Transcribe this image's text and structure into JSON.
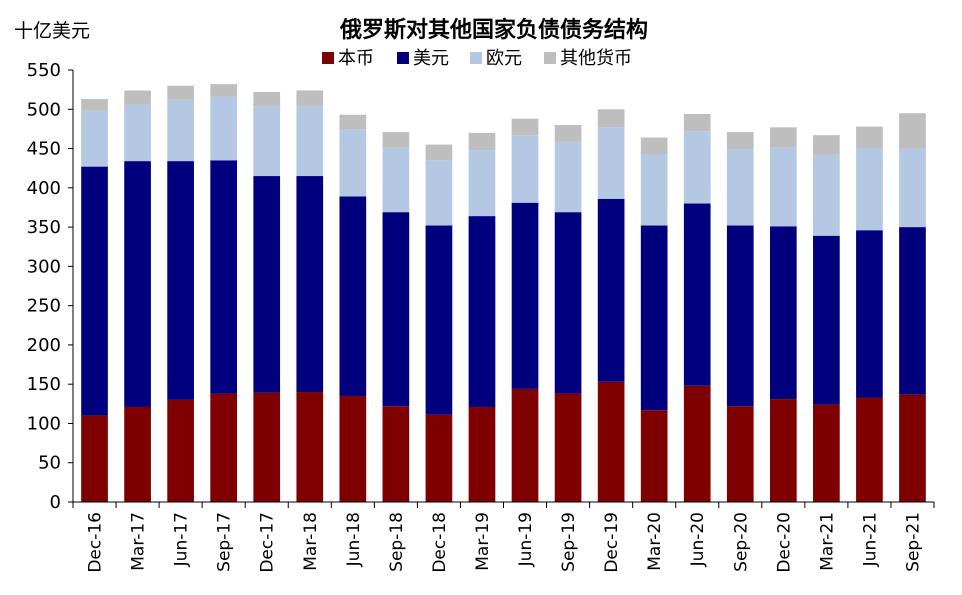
{
  "chart_data": {
    "type": "bar",
    "stacked": true,
    "title": "俄罗斯对其他国家负债债务结构",
    "unit_label": "十亿美元",
    "ylim": [
      0,
      550
    ],
    "yticks": [
      "0",
      "50",
      "100",
      "150",
      "200",
      "250",
      "300",
      "350",
      "400",
      "450",
      "500",
      "550"
    ],
    "categories": [
      "Dec-16",
      "Mar-17",
      "Jun-17",
      "Sep-17",
      "Dec-17",
      "Mar-18",
      "Jun-18",
      "Sep-18",
      "Dec-18",
      "Mar-19",
      "Jun-19",
      "Sep-19",
      "Dec-19",
      "Mar-20",
      "Jun-20",
      "Sep-20",
      "Dec-20",
      "Mar-21",
      "Jun-21",
      "Sep-21"
    ],
    "legend_position": "top",
    "grid": false,
    "series": [
      {
        "name": "本币",
        "color": "#7f0000",
        "values": [
          110,
          121,
          130,
          138,
          139,
          140,
          135,
          122,
          111,
          121,
          144,
          138,
          153,
          117,
          148,
          122,
          131,
          124,
          133,
          137
        ]
      },
      {
        "name": "美元",
        "color": "#00007f",
        "values": [
          317,
          313,
          304,
          297,
          276,
          275,
          254,
          247,
          241,
          243,
          237,
          231,
          233,
          235,
          232,
          230,
          220,
          215,
          213,
          213
        ]
      },
      {
        "name": "欧元",
        "color": "#b4c7e3",
        "values": [
          71,
          72,
          78,
          81,
          89,
          89,
          85,
          82,
          83,
          84,
          86,
          90,
          91,
          91,
          92,
          97,
          100,
          103,
          104,
          100
        ]
      },
      {
        "name": "其他货币",
        "color": "#bebebe",
        "values": [
          15,
          18,
          18,
          16,
          18,
          20,
          19,
          20,
          20,
          22,
          21,
          21,
          23,
          21,
          22,
          22,
          26,
          25,
          28,
          45
        ]
      }
    ]
  }
}
